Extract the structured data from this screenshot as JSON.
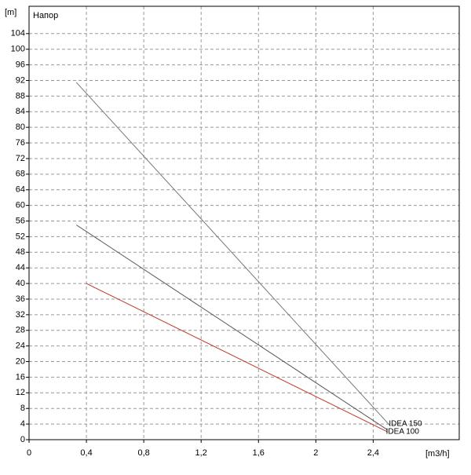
{
  "chart_data": {
    "type": "line",
    "ylabel": "[m]",
    "title": "Напор",
    "xlabel": "[m3/h]",
    "xlim": [
      0,
      3
    ],
    "ylim": [
      0,
      111
    ],
    "xticks": [
      0,
      {
        "value": 0.4,
        "label": "0,4"
      },
      {
        "value": 0.8,
        "label": "0,8"
      },
      {
        "value": 1.2,
        "label": "1,2"
      },
      {
        "value": 1.6,
        "label": "1,6"
      },
      2,
      {
        "value": 2.4,
        "label": "2,4"
      }
    ],
    "yticks": [
      0,
      4,
      8,
      12,
      16,
      20,
      24,
      28,
      32,
      36,
      40,
      44,
      48,
      52,
      56,
      60,
      64,
      68,
      72,
      76,
      80,
      84,
      88,
      92,
      96,
      100,
      104
    ],
    "grid": true,
    "series": [
      {
        "name": "IDEA 150",
        "color": "#777777",
        "x": [
          0.33,
          2.52
        ],
        "values": [
          91.5,
          3.5
        ]
      },
      {
        "color": "#555555",
        "x": [
          0.33,
          2.5
        ],
        "values": [
          55,
          2.5
        ]
      },
      {
        "name": "IDEA 100",
        "color": "#c0392b",
        "x": [
          0.4,
          2.5
        ],
        "values": [
          40,
          2
        ]
      }
    ]
  }
}
